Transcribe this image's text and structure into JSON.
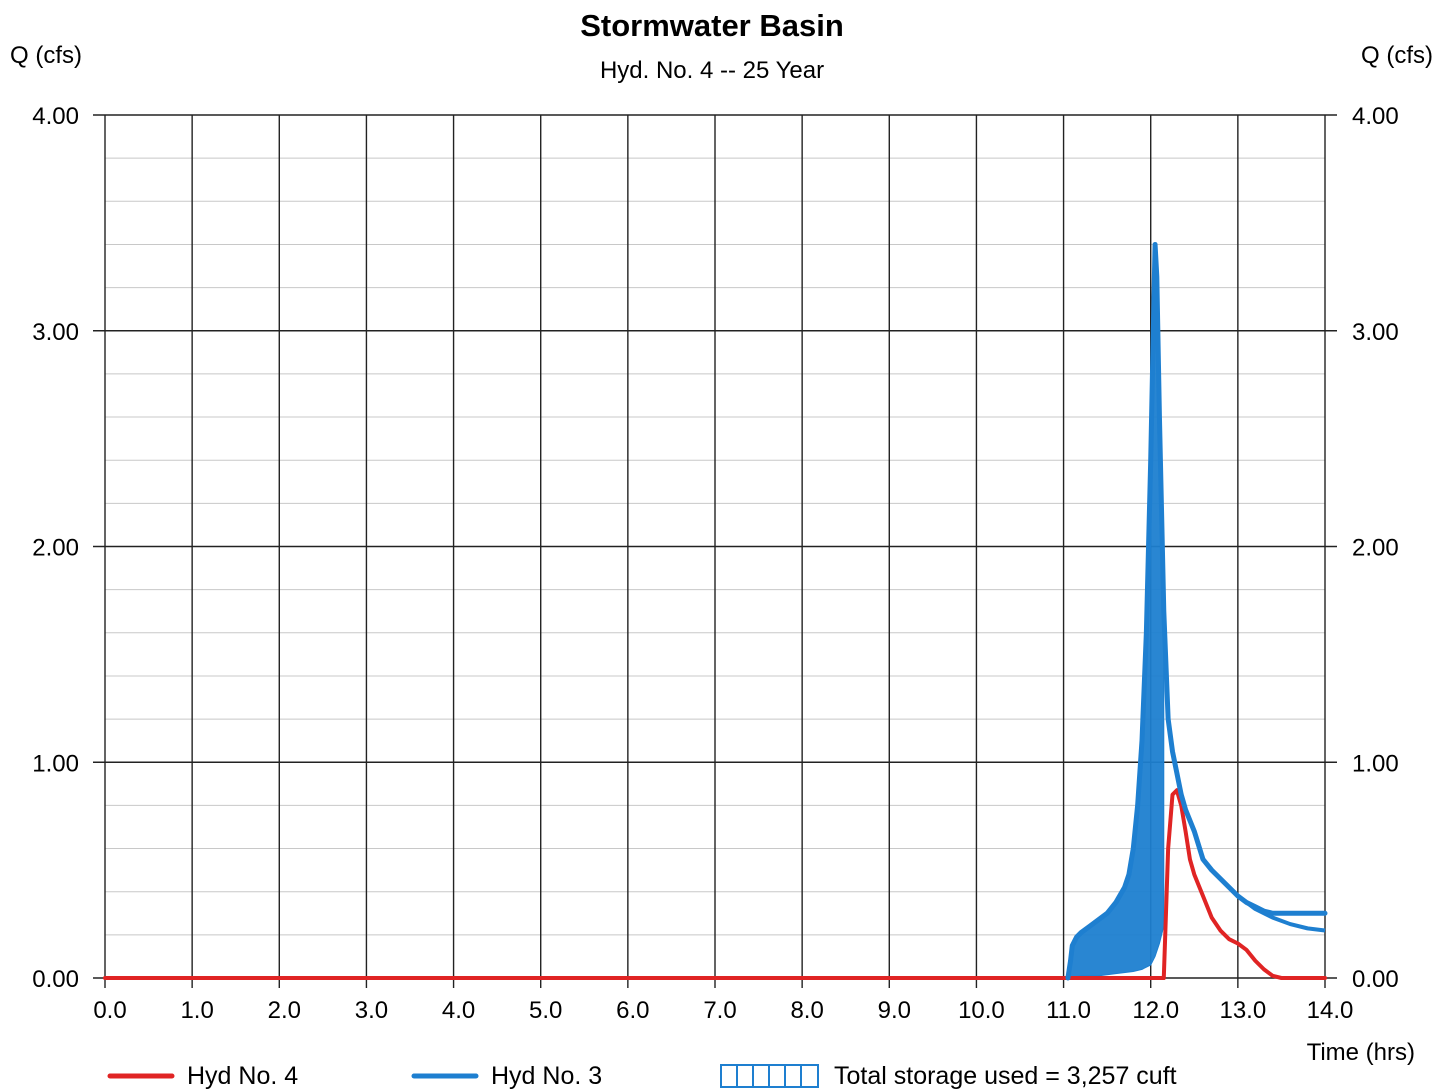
{
  "chart_data": {
    "type": "line",
    "title": "Stormwater Basin",
    "subtitle": "Hyd. No. 4 -- 25 Year",
    "ylabel_left": "Q (cfs)",
    "ylabel_right": "Q (cfs)",
    "xlabel": "Time (hrs)",
    "xlim": [
      0,
      14
    ],
    "ylim": [
      0,
      4
    ],
    "x_ticks": [
      "0.0",
      "1.0",
      "2.0",
      "3.0",
      "4.0",
      "5.0",
      "6.0",
      "7.0",
      "8.0",
      "9.0",
      "10.0",
      "11.0",
      "12.0",
      "13.0",
      "14.0"
    ],
    "y_ticks": [
      "0.00",
      "1.00",
      "2.00",
      "3.00",
      "4.00"
    ],
    "grid": true,
    "legend_position": "bottom",
    "series": [
      {
        "name": "Hyd No. 4",
        "color": "#e02424",
        "x": [
          0.0,
          12.15,
          12.2,
          12.25,
          12.3,
          12.35,
          12.4,
          12.45,
          12.5,
          12.6,
          12.7,
          12.8,
          12.9,
          13.0,
          13.1,
          13.2,
          13.3,
          13.4,
          13.5,
          13.6,
          14.0
        ],
        "y": [
          0.0,
          0.0,
          0.6,
          0.85,
          0.87,
          0.8,
          0.68,
          0.55,
          0.48,
          0.38,
          0.28,
          0.22,
          0.18,
          0.16,
          0.13,
          0.08,
          0.04,
          0.01,
          0.0,
          0.0,
          0.0
        ]
      },
      {
        "name": "Hyd No. 3",
        "color": "#1e7fd0",
        "x": [
          11.05,
          11.08,
          11.1,
          11.15,
          11.2,
          11.3,
          11.4,
          11.5,
          11.6,
          11.7,
          11.75,
          11.8,
          11.85,
          11.9,
          11.95,
          12.0,
          12.03,
          12.05,
          12.07,
          12.1,
          12.15,
          12.2,
          12.25,
          12.3,
          12.35,
          12.4,
          12.5,
          12.6,
          12.7,
          12.8,
          12.9,
          13.0,
          13.1,
          13.2,
          13.3,
          13.4,
          13.5,
          13.6,
          13.7,
          13.8,
          13.9,
          14.0
        ],
        "y": [
          0.0,
          0.08,
          0.15,
          0.19,
          0.21,
          0.24,
          0.27,
          0.3,
          0.35,
          0.42,
          0.48,
          0.6,
          0.8,
          1.1,
          1.6,
          2.4,
          3.0,
          3.4,
          3.25,
          2.6,
          1.7,
          1.2,
          1.05,
          0.95,
          0.85,
          0.78,
          0.68,
          0.55,
          0.5,
          0.46,
          0.42,
          0.38,
          0.35,
          0.33,
          0.31,
          0.3,
          0.3,
          0.3,
          0.3,
          0.3,
          0.3,
          0.3
        ]
      }
    ],
    "secondary_curve": {
      "color": "#1e7fd0",
      "x": [
        13.0,
        13.2,
        13.4,
        13.6,
        13.8,
        14.0
      ],
      "y": [
        0.38,
        0.32,
        0.28,
        0.25,
        0.23,
        0.22
      ]
    },
    "storage_area": {
      "label": "Total storage used = 3,257 cuft",
      "color": "#1e7fd0",
      "lower_x": [
        11.05,
        11.2,
        11.4,
        11.6,
        11.8,
        11.9,
        12.0,
        12.05,
        12.1,
        12.15
      ],
      "lower_y": [
        0.0,
        0.01,
        0.01,
        0.02,
        0.03,
        0.04,
        0.06,
        0.1,
        0.16,
        0.24
      ]
    }
  }
}
